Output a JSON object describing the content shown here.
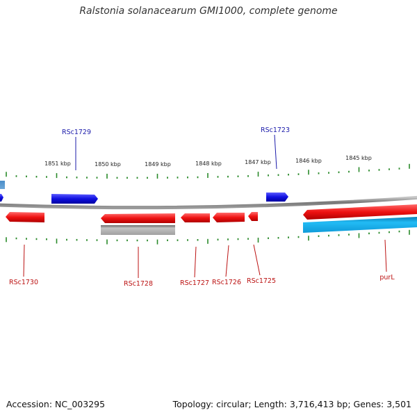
{
  "title": "Ralstonia solanacearum GMI1000, complete genome",
  "footer": {
    "accession": "Accession: NC_003295",
    "topology": "Topology: circular; Length: 3,716,413 bp; Genes: 3,501"
  },
  "scale_labels": [
    "1851 kbp",
    "1850 kbp",
    "1849 kbp",
    "1848 kbp",
    "1847 kbp",
    "1846 kbp",
    "1845 kbp"
  ],
  "genes": [
    {
      "id": "RSc1729",
      "strand": "forward"
    },
    {
      "id": "RSc1723",
      "strand": "forward"
    },
    {
      "id": "RSc1730",
      "strand": "reverse"
    },
    {
      "id": "RSc1728",
      "strand": "reverse"
    },
    {
      "id": "RSc1727",
      "strand": "reverse"
    },
    {
      "id": "RSc1726",
      "strand": "reverse"
    },
    {
      "id": "RSc1725",
      "strand": "reverse"
    },
    {
      "id": "purL",
      "strand": "reverse"
    }
  ],
  "colors": {
    "forward": "#1010e0",
    "reverse": "#ee1111",
    "grey_feature": "#a8a8a8",
    "cyan_feature": "#11aaee",
    "ticks": "#2a8a2a",
    "backbone": "#888888",
    "forward_label": "#1a1aaa",
    "reverse_label": "#bb1111"
  }
}
